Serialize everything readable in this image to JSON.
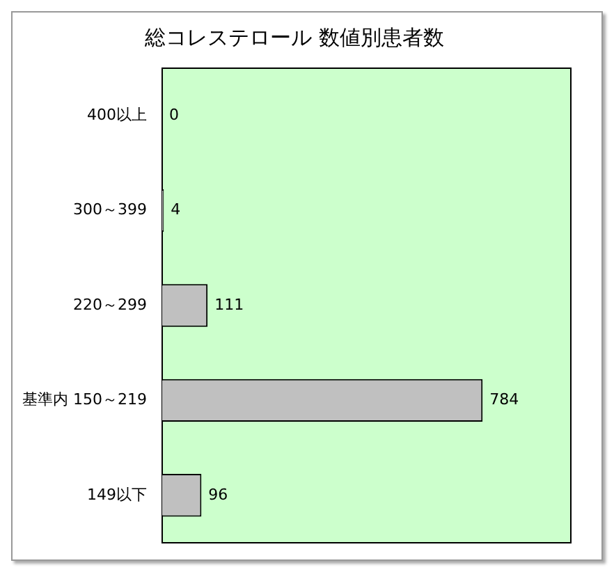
{
  "chart_data": {
    "type": "bar",
    "orientation": "horizontal",
    "title": "総コレステロール 数値別患者数",
    "categories": [
      "400以上",
      "300～399",
      "220～299",
      "基準内 150～219",
      "149以下"
    ],
    "values": [
      0,
      4,
      111,
      784,
      96
    ],
    "color": "#c0c0c0",
    "data_labels": true,
    "legend": false
  }
}
